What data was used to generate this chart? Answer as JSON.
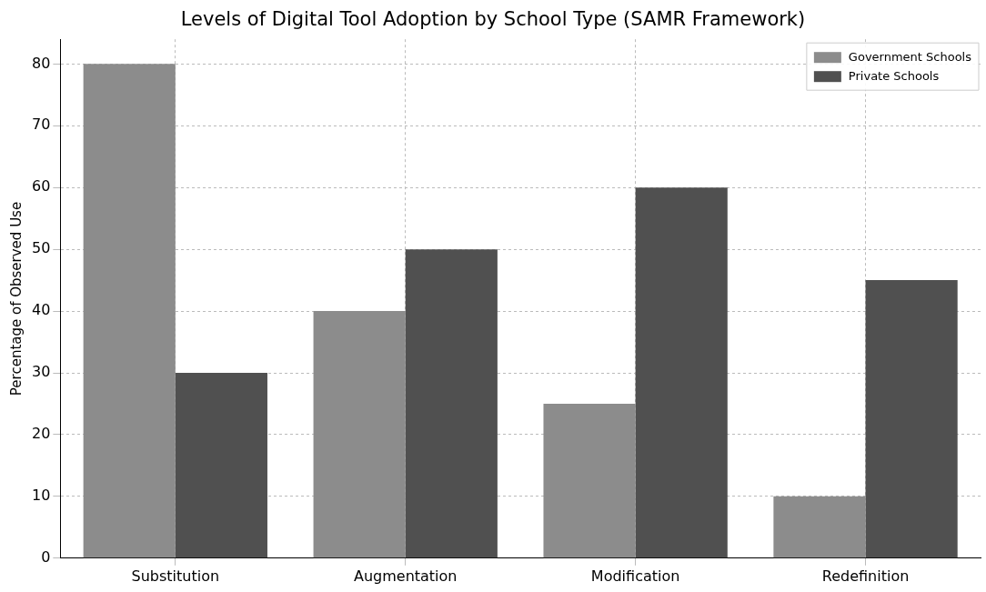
{
  "chart_data": {
    "type": "bar",
    "title": "Levels of Digital Tool Adoption by School Type (SAMR Framework)",
    "ylabel": "Percentage of Observed Use",
    "categories": [
      "Substitution",
      "Augmentation",
      "Modification",
      "Redefinition"
    ],
    "series": [
      {
        "name": "Government Schools",
        "color": "#8c8c8c",
        "values": [
          80,
          40,
          25,
          10
        ]
      },
      {
        "name": "Private Schools",
        "color": "#505050",
        "values": [
          30,
          50,
          60,
          45
        ]
      }
    ],
    "ylim": [
      0,
      84
    ],
    "yticks": [
      0,
      10,
      20,
      30,
      40,
      50,
      60,
      70,
      80
    ],
    "grid": true,
    "legend": "top right"
  }
}
